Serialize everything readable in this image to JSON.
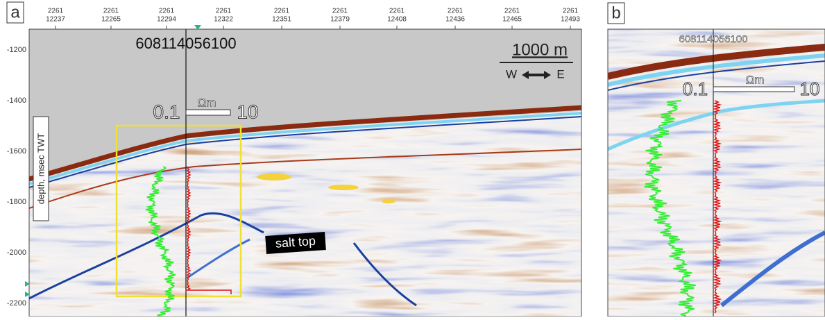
{
  "panel_a": {
    "label": "a",
    "top_ticks": [
      {
        "line1": 2261,
        "line2": 12237
      },
      {
        "line1": 2261,
        "line2": 12265
      },
      {
        "line1": 2261,
        "line2": 12294
      },
      {
        "line1": 2261,
        "line2": 12322
      },
      {
        "line1": 2261,
        "line2": 12351
      },
      {
        "line1": 2261,
        "line2": 12379
      },
      {
        "line1": 2261,
        "line2": 12408
      },
      {
        "line1": 2261,
        "line2": 12436
      },
      {
        "line1": 2261,
        "line2": 12465
      },
      {
        "line1": 2261,
        "line2": 12493
      }
    ],
    "depth_ticks": [
      -1200,
      -1400,
      -1600,
      -1800,
      -2000,
      -2200
    ],
    "axis_label": "depth, msec TWT",
    "well_name": "608114056100",
    "scale_bar": "1000 m",
    "west": "W",
    "east": "E",
    "log_min": "0.1",
    "log_unit": "Ωm",
    "log_max": "10",
    "annotation": "salt top"
  },
  "panel_b": {
    "label": "b",
    "well_name": "608114056100",
    "log_min": "0.1",
    "log_unit": "Ωm",
    "log_max": "10"
  }
}
